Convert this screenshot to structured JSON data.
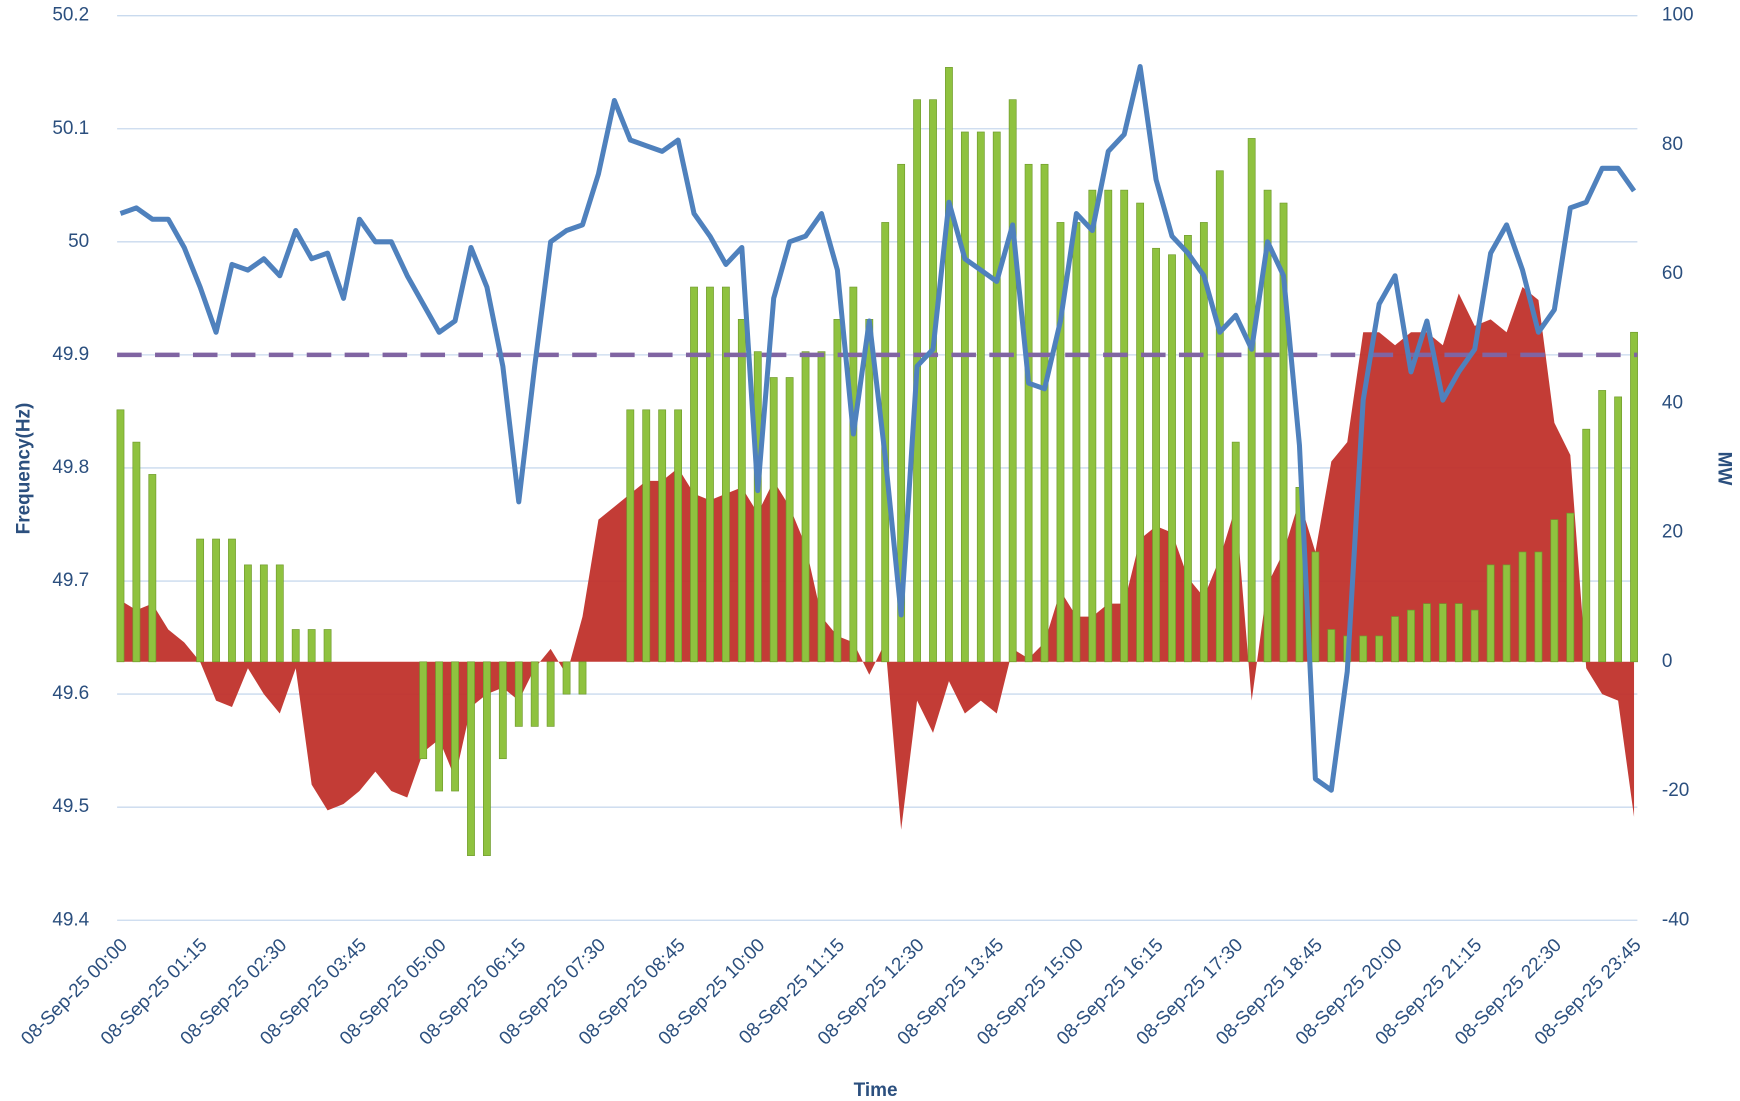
{
  "chart_data": {
    "type": "combo",
    "xlabel": "Time",
    "ylabel": "Frequency(Hz)",
    "y2label": "MW",
    "categories": [
      "08-Sep-25 00:00",
      null,
      null,
      null,
      null,
      "08-Sep-25 01:15",
      null,
      null,
      null,
      null,
      "08-Sep-25 02:30",
      null,
      null,
      null,
      null,
      "08-Sep-25 03:45",
      null,
      null,
      null,
      null,
      "08-Sep-25 05:00",
      null,
      null,
      null,
      null,
      "08-Sep-25 06:15",
      null,
      null,
      null,
      null,
      "08-Sep-25 07:30",
      null,
      null,
      null,
      null,
      "08-Sep-25 08:45",
      null,
      null,
      null,
      null,
      "08-Sep-25 10:00",
      null,
      null,
      null,
      null,
      "08-Sep-25 11:15",
      null,
      null,
      null,
      null,
      "08-Sep-25 12:30",
      null,
      null,
      null,
      null,
      "08-Sep-25 13:45",
      null,
      null,
      null,
      null,
      "08-Sep-25 15:00",
      null,
      null,
      null,
      null,
      "08-Sep-25 16:15",
      null,
      null,
      null,
      null,
      "08-Sep-25 17:30",
      null,
      null,
      null,
      null,
      "08-Sep-25 18:45",
      null,
      null,
      null,
      null,
      "08-Sep-25 20:00",
      null,
      null,
      null,
      null,
      "08-Sep-25 21:15",
      null,
      null,
      null,
      null,
      "08-Sep-25 22:30",
      null,
      null,
      null,
      null,
      "08-Sep-25 23:45"
    ],
    "series": [
      {
        "type": "area",
        "axis": "y2",
        "color": "#c0312b",
        "values": [
          9.5,
          8,
          9,
          5,
          3,
          0,
          -6,
          -7,
          -1,
          -5,
          -8,
          -1,
          -19,
          -23,
          -22,
          -20,
          -17,
          -20,
          -21,
          -14,
          -12,
          -18,
          -7,
          -5,
          -4,
          -6,
          -1,
          2,
          -2,
          7,
          22,
          24,
          26,
          28,
          28,
          30,
          26,
          25,
          26,
          27,
          23,
          28,
          24,
          18,
          7,
          4,
          3,
          -2,
          3,
          -26,
          -6,
          -11,
          -3,
          -8,
          -6,
          -8,
          2,
          0.5,
          3,
          11,
          7,
          7,
          9,
          9,
          19,
          21,
          20,
          13,
          10,
          16,
          24,
          -6,
          12,
          17,
          25,
          17,
          31,
          34,
          51,
          51,
          49,
          51,
          51,
          49,
          57,
          52,
          53,
          51,
          58,
          56,
          37,
          32,
          -1,
          -5,
          -6,
          -24
        ]
      },
      {
        "type": "bar",
        "axis": "y2",
        "color": "#8fc23f",
        "values": [
          39,
          34,
          29,
          0,
          0,
          19,
          19,
          19,
          15,
          15,
          15,
          5,
          5,
          5,
          0,
          0,
          0,
          0,
          0,
          -15,
          -20,
          -20,
          -30,
          -30,
          -15,
          -10,
          -10,
          -10,
          -5,
          -5,
          0,
          0,
          39,
          39,
          39,
          39,
          58,
          58,
          58,
          53,
          48,
          44,
          44,
          48,
          48,
          53,
          58,
          53,
          68,
          77,
          87,
          87,
          92,
          82,
          82,
          82,
          87,
          77,
          77,
          68,
          68,
          73,
          73,
          73,
          71,
          64,
          63,
          66,
          68,
          76,
          34,
          81,
          73,
          71,
          27,
          17,
          5,
          4,
          4,
          4,
          7,
          8,
          9,
          9,
          9,
          8,
          15,
          15,
          17,
          17,
          22,
          23,
          36,
          42,
          41,
          51
        ]
      },
      {
        "type": "line",
        "axis": "y",
        "color": "#4f81bd",
        "values": [
          50.025,
          50.03,
          50.02,
          50.02,
          49.995,
          49.96,
          49.92,
          49.98,
          49.975,
          49.985,
          49.97,
          50.01,
          49.985,
          49.99,
          49.95,
          50.02,
          50.0,
          50.0,
          49.97,
          49.945,
          49.92,
          49.93,
          49.995,
          49.96,
          49.89,
          49.77,
          49.89,
          50.0,
          50.01,
          50.015,
          50.06,
          50.125,
          50.09,
          50.085,
          50.08,
          50.09,
          50.025,
          50.005,
          49.98,
          49.995,
          49.78,
          49.95,
          50.0,
          50.005,
          50.025,
          49.975,
          49.83,
          49.93,
          49.81,
          49.67,
          49.89,
          49.905,
          50.035,
          49.985,
          49.975,
          49.965,
          50.015,
          49.875,
          49.87,
          49.93,
          50.025,
          50.01,
          50.08,
          50.095,
          50.155,
          50.055,
          50.005,
          49.99,
          49.97,
          49.92,
          49.935,
          49.905,
          50.0,
          49.97,
          49.82,
          49.525,
          49.515,
          49.62,
          49.86,
          49.945,
          49.97,
          49.885,
          49.93,
          49.86,
          49.885,
          49.905,
          49.99,
          50.015,
          49.975,
          49.92,
          49.94,
          50.03,
          50.035,
          50.065,
          50.065,
          50.045
        ]
      }
    ],
    "reference_line": {
      "value": 49.9,
      "color": "#8064a2",
      "dashed": true
    },
    "ylim": [
      49.4,
      50.2
    ],
    "yticks": [
      49.4,
      49.5,
      49.6,
      49.7,
      49.8,
      49.9,
      50,
      50.1,
      50.2
    ],
    "y2lim": [
      -40,
      100
    ],
    "y2ticks": [
      -40,
      -20,
      0,
      20,
      40,
      60,
      80,
      100
    ],
    "grid": true
  }
}
